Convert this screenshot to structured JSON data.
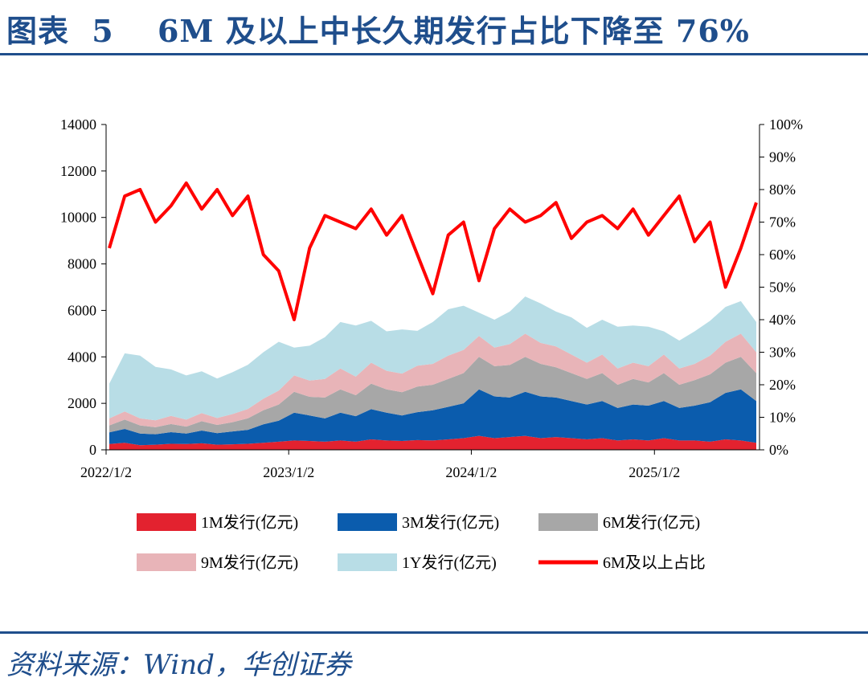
{
  "header": {
    "figure_label": "图表",
    "figure_number": "5",
    "title": "6M 及以上中长久期发行占比下降至 76%"
  },
  "footer": {
    "source": "资料来源：Wind，华创证券"
  },
  "colors": {
    "brand": "#1f4e8c",
    "s1M": "#e3222f",
    "s3M": "#0b5cad",
    "s6M": "#a7a7a7",
    "s9M": "#e8b4b8",
    "s1Y": "#b8dde6",
    "ratio": "#ff0000"
  },
  "chart_data": {
    "type": "area",
    "title": "",
    "xlabel": "",
    "ylabel": "",
    "x_ticks": [
      "2022/1/2",
      "2023/1/2",
      "2024/1/2",
      "2025/1/2"
    ],
    "x_range": [
      "2022-01-02",
      "2025-07-31"
    ],
    "y_left": {
      "ticks": [
        "0",
        "2000",
        "4000",
        "6000",
        "8000",
        "10000",
        "12000",
        "14000"
      ],
      "range": [
        0,
        14000
      ]
    },
    "y_right": {
      "ticks": [
        "0%",
        "10%",
        "20%",
        "30%",
        "40%",
        "50%",
        "60%",
        "70%",
        "80%",
        "90%",
        "100%"
      ],
      "range": [
        0,
        1
      ]
    },
    "grid": false,
    "legend_position": "bottom",
    "stacked": true,
    "x": [
      "2022-01",
      "2022-02",
      "2022-03",
      "2022-04",
      "2022-05",
      "2022-06",
      "2022-07",
      "2022-08",
      "2022-09",
      "2022-10",
      "2022-11",
      "2022-12",
      "2023-01",
      "2023-02",
      "2023-03",
      "2023-04",
      "2023-05",
      "2023-06",
      "2023-07",
      "2023-08",
      "2023-09",
      "2023-10",
      "2023-11",
      "2023-12",
      "2024-01",
      "2024-02",
      "2024-03",
      "2024-04",
      "2024-05",
      "2024-06",
      "2024-07",
      "2024-08",
      "2024-09",
      "2024-10",
      "2024-11",
      "2024-12",
      "2025-01",
      "2025-02",
      "2025-03",
      "2025-04",
      "2025-05",
      "2025-06",
      "2025-07"
    ],
    "series": [
      {
        "name": "1M发行(亿元)",
        "axis": "left",
        "kind": "stacked-area",
        "values": [
          250,
          300,
          200,
          220,
          260,
          250,
          280,
          220,
          240,
          260,
          300,
          350,
          400,
          380,
          350,
          400,
          350,
          450,
          400,
          380,
          420,
          400,
          450,
          500,
          600,
          500,
          550,
          600,
          500,
          550,
          500,
          450,
          500,
          400,
          450,
          400,
          500,
          400,
          400,
          350,
          450,
          400,
          300
        ]
      },
      {
        "name": "3M发行(亿元)",
        "axis": "left",
        "kind": "stacked-area",
        "values": [
          500,
          600,
          500,
          450,
          500,
          450,
          550,
          500,
          550,
          600,
          800,
          900,
          1200,
          1100,
          1000,
          1200,
          1100,
          1300,
          1200,
          1100,
          1200,
          1300,
          1400,
          1500,
          2000,
          1800,
          1700,
          1900,
          1800,
          1700,
          1600,
          1500,
          1600,
          1400,
          1500,
          1500,
          1600,
          1400,
          1500,
          1700,
          2000,
          2200,
          1800
        ]
      },
      {
        "name": "6M发行(亿元)",
        "axis": "left",
        "kind": "stacked-area",
        "values": [
          300,
          400,
          350,
          300,
          350,
          300,
          400,
          350,
          400,
          500,
          600,
          700,
          900,
          800,
          900,
          1000,
          900,
          1100,
          1000,
          1000,
          1100,
          1100,
          1200,
          1300,
          1400,
          1300,
          1400,
          1500,
          1400,
          1300,
          1200,
          1100,
          1200,
          1000,
          1100,
          1000,
          1200,
          1000,
          1100,
          1200,
          1300,
          1400,
          1200
        ]
      },
      {
        "name": "9M发行(亿元)",
        "axis": "left",
        "kind": "stacked-area",
        "values": [
          300,
          350,
          300,
          300,
          350,
          300,
          350,
          300,
          350,
          400,
          500,
          600,
          700,
          700,
          800,
          900,
          800,
          900,
          800,
          800,
          900,
          900,
          1000,
          1000,
          900,
          800,
          900,
          1000,
          900,
          900,
          800,
          700,
          800,
          700,
          700,
          700,
          800,
          700,
          700,
          800,
          900,
          1000,
          900
        ]
      },
      {
        "name": "1Y发行(亿元)",
        "axis": "left",
        "kind": "stacked-area",
        "values": [
          1500,
          2500,
          2700,
          2300,
          2000,
          1900,
          1800,
          1700,
          1800,
          1900,
          2000,
          2100,
          1200,
          1500,
          1800,
          2000,
          2200,
          1800,
          1700,
          1900,
          1500,
          1800,
          2000,
          1900,
          1000,
          1200,
          1400,
          1600,
          1700,
          1500,
          1600,
          1500,
          1500,
          1800,
          1600,
          1700,
          1000,
          1200,
          1400,
          1500,
          1500,
          1400,
          1300
        ]
      },
      {
        "name": "6M及以上占比",
        "axis": "right",
        "kind": "line",
        "values": [
          0.62,
          0.78,
          0.8,
          0.7,
          0.75,
          0.82,
          0.74,
          0.8,
          0.72,
          0.78,
          0.6,
          0.55,
          0.4,
          0.62,
          0.72,
          0.7,
          0.68,
          0.74,
          0.66,
          0.72,
          0.6,
          0.48,
          0.66,
          0.7,
          0.52,
          0.68,
          0.74,
          0.7,
          0.72,
          0.76,
          0.65,
          0.7,
          0.72,
          0.68,
          0.74,
          0.66,
          0.72,
          0.78,
          0.64,
          0.7,
          0.5,
          0.62,
          0.76
        ]
      }
    ]
  },
  "legend": [
    {
      "label": "1M发行(亿元)",
      "kind": "box",
      "color": "#e3222f"
    },
    {
      "label": "3M发行(亿元)",
      "kind": "box",
      "color": "#0b5cad"
    },
    {
      "label": "6M发行(亿元)",
      "kind": "box",
      "color": "#a7a7a7"
    },
    {
      "label": "9M发行(亿元)",
      "kind": "box",
      "color": "#e8b4b8"
    },
    {
      "label": "1Y发行(亿元)",
      "kind": "box",
      "color": "#b8dde6"
    },
    {
      "label": "6M及以上占比",
      "kind": "line",
      "color": "#ff0000"
    }
  ]
}
